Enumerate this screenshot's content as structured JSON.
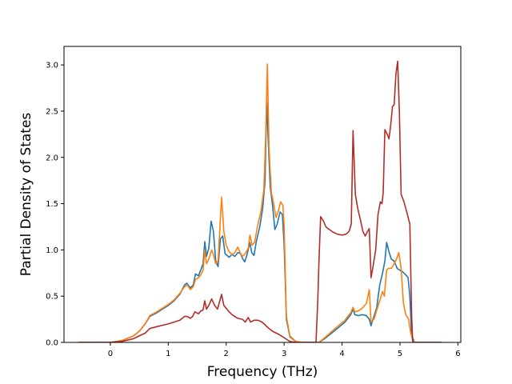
{
  "chart_data": {
    "type": "line",
    "title": "",
    "xlabel": "Frequency (THz)",
    "ylabel": "Partial Density of States",
    "xlim": [
      -0.8,
      6.05
    ],
    "ylim": [
      0,
      3.2
    ],
    "xticks": [
      0,
      1,
      2,
      3,
      4,
      5,
      6
    ],
    "yticks": [
      0.0,
      0.5,
      1.0,
      1.5,
      2.0,
      2.5,
      3.0
    ],
    "grid": false,
    "legend": "none",
    "series": [
      {
        "color": "#1f77b4",
        "points": [
          [
            -0.55,
            0
          ],
          [
            0.0,
            0.0
          ],
          [
            0.2,
            0.02
          ],
          [
            0.4,
            0.07
          ],
          [
            0.5,
            0.12
          ],
          [
            0.6,
            0.2
          ],
          [
            0.68,
            0.28
          ],
          [
            0.8,
            0.32
          ],
          [
            1.0,
            0.4
          ],
          [
            1.1,
            0.45
          ],
          [
            1.2,
            0.52
          ],
          [
            1.28,
            0.62
          ],
          [
            1.32,
            0.64
          ],
          [
            1.38,
            0.59
          ],
          [
            1.43,
            0.62
          ],
          [
            1.47,
            0.74
          ],
          [
            1.52,
            0.72
          ],
          [
            1.56,
            0.78
          ],
          [
            1.6,
            0.85
          ],
          [
            1.63,
            1.09
          ],
          [
            1.66,
            0.93
          ],
          [
            1.7,
            1.02
          ],
          [
            1.74,
            1.31
          ],
          [
            1.78,
            1.2
          ],
          [
            1.82,
            0.88
          ],
          [
            1.86,
            0.82
          ],
          [
            1.9,
            1.12
          ],
          [
            1.94,
            1.15
          ],
          [
            1.98,
            0.96
          ],
          [
            2.05,
            0.92
          ],
          [
            2.1,
            0.95
          ],
          [
            2.15,
            0.93
          ],
          [
            2.2,
            0.97
          ],
          [
            2.25,
            0.96
          ],
          [
            2.28,
            0.91
          ],
          [
            2.32,
            0.87
          ],
          [
            2.36,
            0.95
          ],
          [
            2.41,
            1.08
          ],
          [
            2.44,
            0.97
          ],
          [
            2.48,
            0.94
          ],
          [
            2.52,
            1.09
          ],
          [
            2.58,
            1.25
          ],
          [
            2.63,
            1.45
          ],
          [
            2.67,
            1.75
          ],
          [
            2.7,
            2.6
          ],
          [
            2.73,
            2.12
          ],
          [
            2.76,
            1.68
          ],
          [
            2.8,
            1.48
          ],
          [
            2.84,
            1.22
          ],
          [
            2.88,
            1.28
          ],
          [
            2.93,
            1.41
          ],
          [
            2.97,
            1.38
          ],
          [
            3.0,
            1.05
          ],
          [
            3.04,
            0.25
          ],
          [
            3.1,
            0.06
          ],
          [
            3.2,
            0.01
          ],
          [
            3.3,
            0
          ],
          [
            3.6,
            0
          ],
          [
            3.7,
            0.04
          ],
          [
            3.9,
            0.14
          ],
          [
            4.05,
            0.22
          ],
          [
            4.15,
            0.3
          ],
          [
            4.19,
            0.36
          ],
          [
            4.22,
            0.3
          ],
          [
            4.28,
            0.29
          ],
          [
            4.35,
            0.3
          ],
          [
            4.42,
            0.29
          ],
          [
            4.47,
            0.25
          ],
          [
            4.5,
            0.18
          ],
          [
            4.55,
            0.28
          ],
          [
            4.6,
            0.38
          ],
          [
            4.65,
            0.62
          ],
          [
            4.7,
            0.75
          ],
          [
            4.74,
            0.88
          ],
          [
            4.77,
            1.08
          ],
          [
            4.81,
            0.98
          ],
          [
            4.85,
            0.9
          ],
          [
            4.9,
            0.88
          ],
          [
            4.95,
            0.8
          ],
          [
            5.0,
            0.78
          ],
          [
            5.05,
            0.76
          ],
          [
            5.1,
            0.73
          ],
          [
            5.14,
            0.7
          ],
          [
            5.17,
            0.5
          ],
          [
            5.2,
            0.08
          ],
          [
            5.25,
            0
          ],
          [
            5.72,
            0
          ]
        ]
      },
      {
        "color": "#ff7f0e",
        "points": [
          [
            -0.55,
            0
          ],
          [
            0.0,
            0.0
          ],
          [
            0.2,
            0.02
          ],
          [
            0.4,
            0.07
          ],
          [
            0.5,
            0.12
          ],
          [
            0.6,
            0.2
          ],
          [
            0.68,
            0.29
          ],
          [
            0.8,
            0.33
          ],
          [
            1.0,
            0.41
          ],
          [
            1.1,
            0.46
          ],
          [
            1.2,
            0.53
          ],
          [
            1.28,
            0.6
          ],
          [
            1.33,
            0.62
          ],
          [
            1.38,
            0.57
          ],
          [
            1.43,
            0.6
          ],
          [
            1.47,
            0.68
          ],
          [
            1.52,
            0.7
          ],
          [
            1.56,
            0.73
          ],
          [
            1.6,
            0.78
          ],
          [
            1.63,
            1.0
          ],
          [
            1.66,
            0.85
          ],
          [
            1.7,
            0.9
          ],
          [
            1.75,
            1.0
          ],
          [
            1.78,
            0.95
          ],
          [
            1.82,
            0.85
          ],
          [
            1.86,
            0.88
          ],
          [
            1.92,
            1.57
          ],
          [
            1.96,
            1.2
          ],
          [
            2.0,
            1.05
          ],
          [
            2.05,
            0.98
          ],
          [
            2.1,
            0.95
          ],
          [
            2.15,
            0.97
          ],
          [
            2.2,
            1.03
          ],
          [
            2.24,
            0.97
          ],
          [
            2.28,
            0.93
          ],
          [
            2.33,
            0.96
          ],
          [
            2.38,
            1.02
          ],
          [
            2.41,
            1.16
          ],
          [
            2.45,
            1.05
          ],
          [
            2.49,
            1.08
          ],
          [
            2.54,
            1.25
          ],
          [
            2.6,
            1.42
          ],
          [
            2.65,
            1.65
          ],
          [
            2.68,
            2.2
          ],
          [
            2.71,
            3.01
          ],
          [
            2.74,
            2.1
          ],
          [
            2.78,
            1.62
          ],
          [
            2.82,
            1.5
          ],
          [
            2.86,
            1.35
          ],
          [
            2.9,
            1.42
          ],
          [
            2.94,
            1.52
          ],
          [
            2.98,
            1.48
          ],
          [
            3.0,
            1.25
          ],
          [
            3.04,
            0.28
          ],
          [
            3.1,
            0.07
          ],
          [
            3.2,
            0.01
          ],
          [
            3.3,
            0
          ],
          [
            3.6,
            0
          ],
          [
            3.7,
            0.05
          ],
          [
            3.9,
            0.16
          ],
          [
            4.05,
            0.24
          ],
          [
            4.15,
            0.32
          ],
          [
            4.19,
            0.38
          ],
          [
            4.22,
            0.33
          ],
          [
            4.28,
            0.34
          ],
          [
            4.35,
            0.37
          ],
          [
            4.42,
            0.42
          ],
          [
            4.47,
            0.57
          ],
          [
            4.5,
            0.22
          ],
          [
            4.55,
            0.25
          ],
          [
            4.6,
            0.35
          ],
          [
            4.65,
            0.45
          ],
          [
            4.7,
            0.55
          ],
          [
            4.73,
            0.5
          ],
          [
            4.77,
            0.78
          ],
          [
            4.8,
            0.8
          ],
          [
            4.85,
            0.8
          ],
          [
            4.9,
            0.85
          ],
          [
            4.94,
            0.9
          ],
          [
            4.98,
            0.97
          ],
          [
            5.02,
            0.8
          ],
          [
            5.06,
            0.42
          ],
          [
            5.1,
            0.3
          ],
          [
            5.15,
            0.25
          ],
          [
            5.18,
            0.12
          ],
          [
            5.22,
            0.02
          ],
          [
            5.26,
            0
          ],
          [
            5.72,
            0
          ]
        ]
      },
      {
        "color": "#b22d2a",
        "points": [
          [
            -0.55,
            0
          ],
          [
            0.0,
            0.0
          ],
          [
            0.2,
            0.01
          ],
          [
            0.4,
            0.04
          ],
          [
            0.5,
            0.07
          ],
          [
            0.6,
            0.1
          ],
          [
            0.68,
            0.15
          ],
          [
            0.8,
            0.17
          ],
          [
            1.0,
            0.2
          ],
          [
            1.1,
            0.22
          ],
          [
            1.2,
            0.24
          ],
          [
            1.28,
            0.28
          ],
          [
            1.33,
            0.28
          ],
          [
            1.38,
            0.26
          ],
          [
            1.42,
            0.28
          ],
          [
            1.46,
            0.33
          ],
          [
            1.52,
            0.31
          ],
          [
            1.56,
            0.34
          ],
          [
            1.6,
            0.35
          ],
          [
            1.63,
            0.45
          ],
          [
            1.66,
            0.36
          ],
          [
            1.7,
            0.4
          ],
          [
            1.75,
            0.47
          ],
          [
            1.8,
            0.4
          ],
          [
            1.85,
            0.36
          ],
          [
            1.92,
            0.52
          ],
          [
            1.96,
            0.4
          ],
          [
            2.0,
            0.37
          ],
          [
            2.05,
            0.33
          ],
          [
            2.1,
            0.3
          ],
          [
            2.2,
            0.26
          ],
          [
            2.28,
            0.25
          ],
          [
            2.33,
            0.22
          ],
          [
            2.38,
            0.27
          ],
          [
            2.42,
            0.22
          ],
          [
            2.48,
            0.24
          ],
          [
            2.55,
            0.24
          ],
          [
            2.62,
            0.22
          ],
          [
            2.67,
            0.19
          ],
          [
            2.72,
            0.16
          ],
          [
            2.8,
            0.12
          ],
          [
            2.9,
            0.09
          ],
          [
            3.0,
            0.05
          ],
          [
            3.05,
            0.03
          ],
          [
            3.1,
            0.01
          ],
          [
            3.2,
            0
          ],
          [
            3.55,
            0
          ],
          [
            3.58,
            0.45
          ],
          [
            3.6,
            0.85
          ],
          [
            3.63,
            1.36
          ],
          [
            3.68,
            1.31
          ],
          [
            3.72,
            1.25
          ],
          [
            3.78,
            1.22
          ],
          [
            3.85,
            1.19
          ],
          [
            3.92,
            1.17
          ],
          [
            4.0,
            1.16
          ],
          [
            4.07,
            1.17
          ],
          [
            4.12,
            1.2
          ],
          [
            4.16,
            1.28
          ],
          [
            4.19,
            2.29
          ],
          [
            4.23,
            1.6
          ],
          [
            4.27,
            1.45
          ],
          [
            4.32,
            1.32
          ],
          [
            4.36,
            1.2
          ],
          [
            4.4,
            1.15
          ],
          [
            4.44,
            1.2
          ],
          [
            4.47,
            1.23
          ],
          [
            4.5,
            0.7
          ],
          [
            4.53,
            0.8
          ],
          [
            4.58,
            1.0
          ],
          [
            4.62,
            1.38
          ],
          [
            4.66,
            1.52
          ],
          [
            4.69,
            1.5
          ],
          [
            4.71,
            1.62
          ],
          [
            4.74,
            2.3
          ],
          [
            4.78,
            2.25
          ],
          [
            4.81,
            2.2
          ],
          [
            4.84,
            2.35
          ],
          [
            4.87,
            2.55
          ],
          [
            4.9,
            2.57
          ],
          [
            4.93,
            2.9
          ],
          [
            4.96,
            3.04
          ],
          [
            4.99,
            2.5
          ],
          [
            5.02,
            1.6
          ],
          [
            5.07,
            1.52
          ],
          [
            5.12,
            1.4
          ],
          [
            5.17,
            1.28
          ],
          [
            5.2,
            0.3
          ],
          [
            5.22,
            0
          ],
          [
            5.72,
            0
          ]
        ]
      }
    ]
  }
}
